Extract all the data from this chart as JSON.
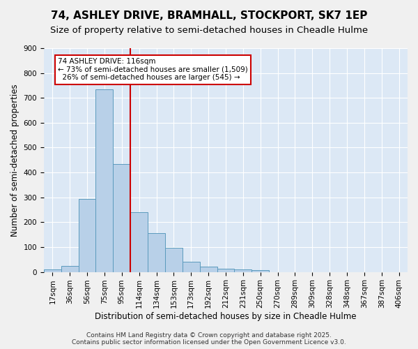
{
  "title1": "74, ASHLEY DRIVE, BRAMHALL, STOCKPORT, SK7 1EP",
  "title2": "Size of property relative to semi-detached houses in Cheadle Hulme",
  "xlabel": "Distribution of semi-detached houses by size in Cheadle Hulme",
  "ylabel": "Number of semi-detached properties",
  "bin_labels": [
    "17sqm",
    "36sqm",
    "56sqm",
    "75sqm",
    "95sqm",
    "114sqm",
    "134sqm",
    "153sqm",
    "173sqm",
    "192sqm",
    "212sqm",
    "231sqm",
    "250sqm",
    "270sqm",
    "289sqm",
    "309sqm",
    "328sqm",
    "348sqm",
    "367sqm",
    "387sqm",
    "406sqm"
  ],
  "bar_heights": [
    10,
    25,
    295,
    735,
    435,
    240,
    155,
    98,
    40,
    20,
    12,
    10,
    8,
    0,
    0,
    0,
    0,
    0,
    0,
    0,
    0
  ],
  "bar_color": "#b8d0e8",
  "bar_edge_color": "#5b9abd",
  "vline_color": "#cc0000",
  "annotation_text": "74 ASHLEY DRIVE: 116sqm\n← 73% of semi-detached houses are smaller (1,509)\n  26% of semi-detached houses are larger (545) →",
  "annotation_box_color": "#ffffff",
  "annotation_box_edge": "#cc0000",
  "ylim": [
    0,
    900
  ],
  "yticks": [
    0,
    100,
    200,
    300,
    400,
    500,
    600,
    700,
    800,
    900
  ],
  "background_color": "#dce8f5",
  "grid_color": "#ffffff",
  "footer1": "Contains HM Land Registry data © Crown copyright and database right 2025.",
  "footer2": "Contains public sector information licensed under the Open Government Licence v3.0.",
  "title_fontsize": 11,
  "subtitle_fontsize": 9.5,
  "axis_label_fontsize": 8.5,
  "tick_fontsize": 7.5,
  "footer_fontsize": 6.5
}
